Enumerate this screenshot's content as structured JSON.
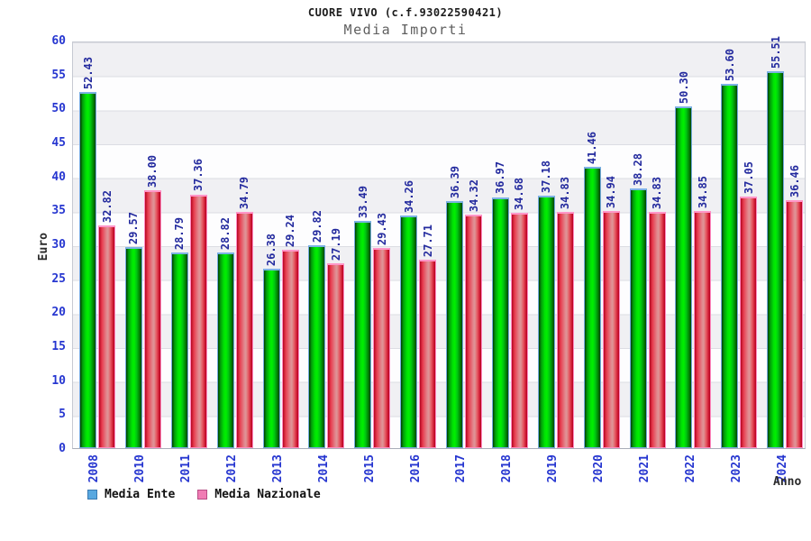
{
  "header": {
    "title": "CUORE VIVO (c.f.93022590421)",
    "subtitle": "Media Importi"
  },
  "chart_data": {
    "type": "bar",
    "title": "CUORE VIVO (c.f.93022590421)",
    "subtitle": "Media Importi",
    "xlabel": "Anno",
    "ylabel": "Euro",
    "ylim": [
      0,
      60
    ],
    "yticks": [
      0,
      5,
      10,
      15,
      20,
      25,
      30,
      35,
      40,
      45,
      50,
      55,
      60
    ],
    "grid": "horizontal-bands",
    "legend_position": "bottom-left",
    "value_labels_rotated": true,
    "categories": [
      "2008",
      "2010",
      "2011",
      "2012",
      "2013",
      "2014",
      "2015",
      "2016",
      "2017",
      "2018",
      "2019",
      "2020",
      "2021",
      "2022",
      "2023",
      "2024"
    ],
    "series": [
      {
        "name": "Media Ente",
        "values": [
          52.43,
          29.57,
          28.79,
          28.82,
          26.38,
          29.82,
          33.49,
          34.26,
          36.39,
          36.97,
          37.18,
          41.46,
          38.28,
          50.3,
          53.6,
          55.51
        ],
        "bar_style": "green",
        "legend_swatch_color": "#58a8e0"
      },
      {
        "name": "Media Nazionale",
        "values": [
          32.82,
          38.0,
          37.36,
          34.79,
          29.24,
          27.19,
          29.43,
          27.71,
          34.32,
          34.68,
          34.83,
          34.94,
          34.83,
          34.85,
          37.05,
          36.46
        ],
        "bar_style": "red",
        "legend_swatch_color": "#f07cb4"
      }
    ],
    "colors": {
      "bar_green_center": "#00ef00",
      "bar_green_edge": "#013c01",
      "bar_green_cap": "#7cb2e4",
      "bar_red_center": "#de9597",
      "bar_red_edge": "#b30520",
      "bar_red_cap": "#ff96c8",
      "value_label": "#232a9e",
      "axis_tick_label": "#2636d0",
      "band_gray": "#f0f0f3",
      "band_white": "#fdfdfe",
      "title_text": "#1c1c1c",
      "subtitle_text": "#5f5f5f"
    }
  },
  "legend": {
    "items": [
      {
        "label": "Media Ente"
      },
      {
        "label": "Media Nazionale"
      }
    ]
  }
}
